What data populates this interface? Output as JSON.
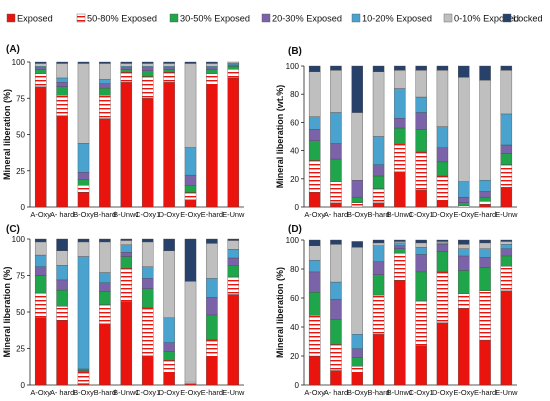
{
  "legend": [
    {
      "label": "Exposed",
      "color": "#e8140d",
      "pattern": "solid"
    },
    {
      "label": "50-80% Exposed",
      "color": "#e8140d",
      "pattern": "hstripe"
    },
    {
      "label": "30-50% Exposed",
      "color": "#1fa64a",
      "pattern": "solid"
    },
    {
      "label": "20-30% Exposed",
      "color": "#7a63a8",
      "pattern": "solid"
    },
    {
      "label": "10-20% Exposed",
      "color": "#4aa3cf",
      "pattern": "solid"
    },
    {
      "label": "0-10% Exposed",
      "color": "#bfbfbf",
      "pattern": "solid"
    },
    {
      "label": "Locked",
      "color": "#27416b",
      "pattern": "solid"
    }
  ],
  "chart_data": [
    {
      "type": "bar",
      "stacked": true,
      "panel_label": "(A)",
      "ylabel": "Mineral liberation (%)",
      "ylim": [
        0,
        100
      ],
      "yticks": [
        0,
        25,
        50,
        75,
        100
      ],
      "categories": [
        "A-Oxy",
        "A- hard",
        "B-Oxy",
        "B-hard",
        "B-Unw1",
        "C-Oxy1",
        "D-Oxy",
        "E-Oxy",
        "E-hard",
        "E-Unw"
      ],
      "series": [
        {
          "name": "Exposed",
          "values": [
            83,
            63,
            10,
            61,
            86,
            75,
            86,
            5,
            84,
            89
          ]
        },
        {
          "name": "50-80% Exposed",
          "values": [
            9,
            14,
            5,
            16,
            7,
            15,
            7,
            5,
            8,
            6
          ]
        },
        {
          "name": "30-50% Exposed",
          "values": [
            3,
            6,
            4,
            5,
            2,
            4,
            2,
            5,
            3,
            2
          ]
        },
        {
          "name": "20-30% Exposed",
          "values": [
            1,
            3,
            5,
            3,
            1,
            2,
            1,
            7,
            1,
            1
          ]
        },
        {
          "name": "10-20% Exposed",
          "values": [
            1,
            3,
            20,
            3,
            1,
            1,
            1,
            19,
            1,
            1
          ]
        },
        {
          "name": "0-10% Exposed",
          "values": [
            2,
            10,
            55,
            11,
            2,
            2,
            2,
            58,
            2,
            1
          ]
        },
        {
          "name": "Locked",
          "values": [
            1,
            1,
            1,
            1,
            1,
            1,
            1,
            1,
            1,
            0
          ]
        }
      ]
    },
    {
      "type": "bar",
      "stacked": true,
      "panel_label": "(B)",
      "ylabel": "Mineral liberation (wt.%)",
      "ylim": [
        0,
        100
      ],
      "yticks": [
        0,
        20,
        40,
        60,
        80,
        100
      ],
      "categories": [
        "A-Oxy",
        "A- hard",
        "B-Oxy",
        "B-hard",
        "B-Unw1",
        "C-Oxy1",
        "D-Oxy",
        "E-Oxy",
        "E-hard",
        "E-Unw"
      ],
      "series": [
        {
          "name": "Exposed",
          "values": [
            10,
            3,
            0,
            3,
            25,
            12,
            4,
            0,
            2,
            14
          ]
        },
        {
          "name": "50-80% Exposed",
          "values": [
            23,
            15,
            3,
            10,
            20,
            27,
            18,
            1,
            2,
            16
          ]
        },
        {
          "name": "30-50% Exposed",
          "values": [
            14,
            16,
            4,
            9,
            11,
            16,
            10,
            2,
            3,
            8
          ]
        },
        {
          "name": "20-30% Exposed",
          "values": [
            8,
            11,
            12,
            8,
            7,
            12,
            10,
            4,
            4,
            6
          ]
        },
        {
          "name": "10-20% Exposed",
          "values": [
            9,
            22,
            0,
            20,
            21,
            11,
            15,
            11,
            8,
            22
          ]
        },
        {
          "name": "0-10% Exposed",
          "values": [
            32,
            30,
            48,
            46,
            13,
            19,
            40,
            74,
            71,
            31
          ]
        },
        {
          "name": "Locked",
          "values": [
            4,
            3,
            33,
            4,
            3,
            3,
            3,
            8,
            10,
            3
          ]
        }
      ]
    },
    {
      "type": "bar",
      "stacked": true,
      "panel_label": "(C)",
      "ylabel": "Mineral liberation (%)",
      "ylim": [
        0,
        100
      ],
      "yticks": [
        0,
        25,
        50,
        75,
        100
      ],
      "categories": [
        "A-Oxy",
        "A- hard",
        "B-Oxy",
        "B-hard",
        "B-Unw1",
        "C-Oxy1",
        "D-Oxy",
        "E-Oxy",
        "E-hard",
        "E-Unw"
      ],
      "series": [
        {
          "name": "Exposed",
          "values": [
            46,
            44,
            1,
            42,
            57,
            20,
            8,
            1,
            19,
            62
          ]
        },
        {
          "name": "50-80% Exposed",
          "values": [
            17,
            10,
            8,
            13,
            23,
            33,
            9,
            1,
            12,
            12
          ]
        },
        {
          "name": "30-50% Exposed",
          "values": [
            12,
            11,
            1,
            9,
            8,
            13,
            6,
            0,
            17,
            8
          ]
        },
        {
          "name": "20-30% Exposed",
          "values": [
            6,
            7,
            1,
            6,
            3,
            7,
            6,
            0,
            12,
            5
          ]
        },
        {
          "name": "10-20% Exposed",
          "values": [
            8,
            10,
            77,
            7,
            5,
            8,
            17,
            0,
            13,
            6
          ]
        },
        {
          "name": "0-10% Exposed",
          "values": [
            9,
            10,
            10,
            21,
            3,
            17,
            46,
            69,
            24,
            6
          ]
        },
        {
          "name": "Locked",
          "values": [
            2,
            8,
            2,
            2,
            1,
            2,
            8,
            29,
            3,
            1
          ]
        }
      ]
    },
    {
      "type": "bar",
      "stacked": true,
      "panel_label": "(D)",
      "ylabel": "Mineral liberation (%)",
      "ylim": [
        0,
        100
      ],
      "yticks": [
        0,
        20,
        40,
        60,
        80,
        100
      ],
      "categories": [
        "A-Oxy",
        "A- hard",
        "B-Oxy",
        "B-hard",
        "B-Unw1",
        "C-Oxy1",
        "D-Oxy",
        "E-Oxy",
        "E-hard",
        "E-Unw"
      ],
      "series": [
        {
          "name": "Exposed",
          "values": [
            20,
            10,
            8,
            35,
            72,
            27,
            43,
            53,
            31,
            65
          ]
        },
        {
          "name": "50-80% Exposed",
          "values": [
            28,
            18,
            5,
            27,
            19,
            31,
            35,
            10,
            34,
            17
          ]
        },
        {
          "name": "30-50% Exposed",
          "values": [
            16,
            17,
            6,
            14,
            3,
            20,
            14,
            16,
            16,
            7
          ]
        },
        {
          "name": "20-30% Exposed",
          "values": [
            14,
            14,
            6,
            9,
            2,
            12,
            5,
            10,
            7,
            5
          ]
        },
        {
          "name": "10-20% Exposed",
          "values": [
            8,
            12,
            10,
            11,
            2,
            5,
            1,
            5,
            6,
            3
          ]
        },
        {
          "name": "0-10% Exposed",
          "values": [
            10,
            26,
            60,
            2,
            1,
            3,
            1,
            3,
            4,
            2
          ]
        },
        {
          "name": "Locked",
          "values": [
            4,
            3,
            4,
            2,
            1,
            2,
            1,
            3,
            2,
            1
          ]
        }
      ]
    }
  ]
}
